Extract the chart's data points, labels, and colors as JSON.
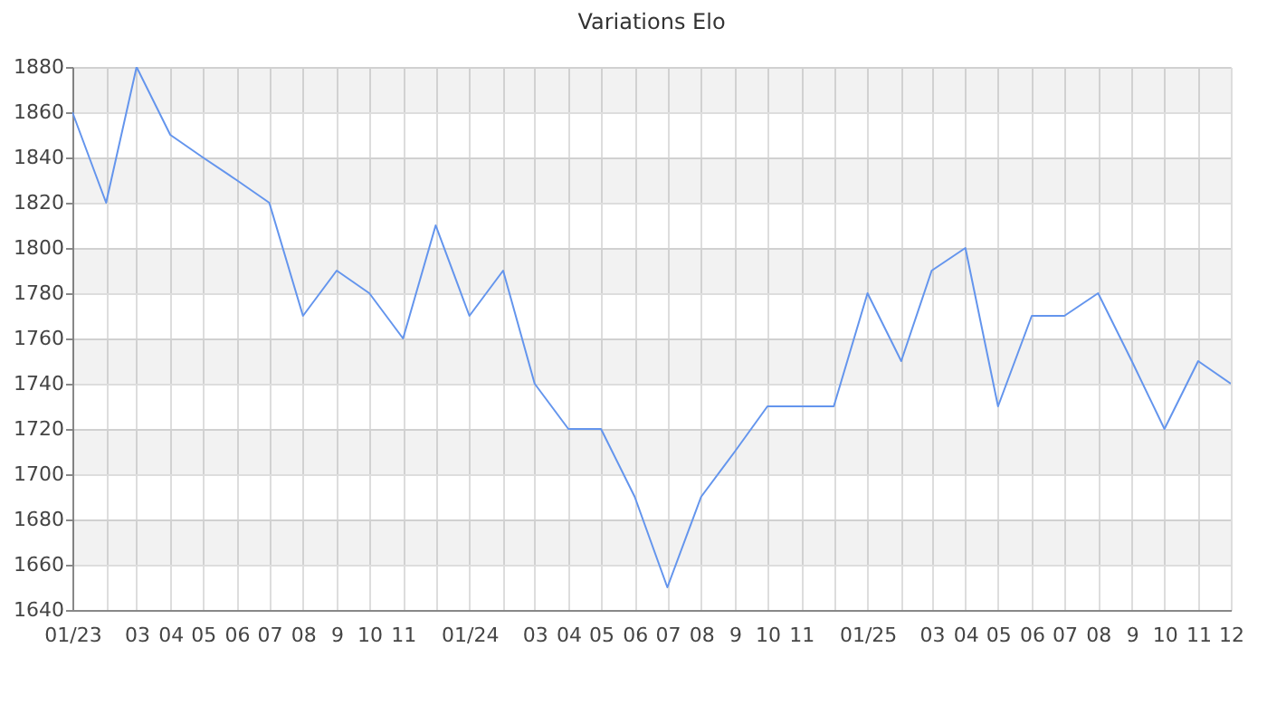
{
  "chart_data": {
    "type": "line",
    "title": "Variations Elo",
    "x": [
      "2023-01",
      "2023-02",
      "2023-03",
      "2023-04",
      "2023-05",
      "2023-06",
      "2023-07",
      "2023-08",
      "2023-09",
      "2023-10",
      "2023-11",
      "2023-12",
      "2024-01",
      "2024-02",
      "2024-03",
      "2024-04",
      "2024-05",
      "2024-06",
      "2024-07",
      "2024-08",
      "2024-09",
      "2024-10",
      "2024-11",
      "2024-12",
      "2025-01",
      "2025-02",
      "2025-03",
      "2025-04",
      "2025-05",
      "2025-06",
      "2025-07",
      "2025-08",
      "2025-09",
      "2025-10",
      "2025-11",
      "2025-12"
    ],
    "values": [
      1860,
      1820,
      1880,
      1850,
      1840,
      1830,
      1820,
      1770,
      1790,
      1780,
      1760,
      1810,
      1770,
      1790,
      1740,
      1720,
      1720,
      1690,
      1650,
      1690,
      1710,
      1730,
      1730,
      1730,
      1780,
      1750,
      1790,
      1800,
      1730,
      1770,
      1770,
      1780,
      1750,
      1720,
      1750,
      1740
    ],
    "color": "#6495ed",
    "xlim": [
      "2023-01",
      "2025-12"
    ],
    "xticks": [
      {
        "value": "2023-01",
        "label": "01/23"
      },
      {
        "value": "2023-02",
        "label": null
      },
      {
        "value": "2023-03",
        "label": "03"
      },
      {
        "value": "2023-04",
        "label": "04"
      },
      {
        "value": "2023-05",
        "label": "05"
      },
      {
        "value": "2023-06",
        "label": "06"
      },
      {
        "value": "2023-07",
        "label": "07"
      },
      {
        "value": "2023-08",
        "label": "08"
      },
      {
        "value": "2023-09",
        "label": "9"
      },
      {
        "value": "2023-10",
        "label": "10"
      },
      {
        "value": "2023-11",
        "label": "11"
      },
      {
        "value": "2023-12",
        "label": null
      },
      {
        "value": "2024-01",
        "label": "01/24"
      },
      {
        "value": "2024-02",
        "label": null
      },
      {
        "value": "2024-03",
        "label": "03"
      },
      {
        "value": "2024-04",
        "label": "04"
      },
      {
        "value": "2024-05",
        "label": "05"
      },
      {
        "value": "2024-06",
        "label": "06"
      },
      {
        "value": "2024-07",
        "label": "07"
      },
      {
        "value": "2024-08",
        "label": "08"
      },
      {
        "value": "2024-09",
        "label": "9"
      },
      {
        "value": "2024-10",
        "label": "10"
      },
      {
        "value": "2024-11",
        "label": "11"
      },
      {
        "value": "2024-12",
        "label": null
      },
      {
        "value": "2025-01",
        "label": "01/25"
      },
      {
        "value": "2025-02",
        "label": null
      },
      {
        "value": "2025-03",
        "label": "03"
      },
      {
        "value": "2025-04",
        "label": "04"
      },
      {
        "value": "2025-05",
        "label": "05"
      },
      {
        "value": "2025-06",
        "label": "06"
      },
      {
        "value": "2025-07",
        "label": "07"
      },
      {
        "value": "2025-08",
        "label": "08"
      },
      {
        "value": "2025-09",
        "label": "9"
      },
      {
        "value": "2025-10",
        "label": "10"
      },
      {
        "value": "2025-11",
        "label": "11"
      },
      {
        "value": "2025-12",
        "label": "12"
      }
    ],
    "ylim": [
      1640,
      1880
    ],
    "yticks": [
      1640,
      1660,
      1680,
      1700,
      1720,
      1740,
      1760,
      1780,
      1800,
      1820,
      1840,
      1860,
      1880
    ],
    "grid": true,
    "bands": [
      {
        "axis": "y",
        "from": 1660,
        "to": 1680,
        "color": "#f2f2f2"
      },
      {
        "axis": "y",
        "from": 1700,
        "to": 1720,
        "color": "#f2f2f2"
      },
      {
        "axis": "y",
        "from": 1740,
        "to": 1760,
        "color": "#f2f2f2"
      },
      {
        "axis": "y",
        "from": 1780,
        "to": 1800,
        "color": "#f2f2f2"
      },
      {
        "axis": "y",
        "from": 1820,
        "to": 1840,
        "color": "#f2f2f2"
      },
      {
        "axis": "y",
        "from": 1860,
        "to": 1880,
        "color": "#f2f2f2"
      }
    ]
  }
}
